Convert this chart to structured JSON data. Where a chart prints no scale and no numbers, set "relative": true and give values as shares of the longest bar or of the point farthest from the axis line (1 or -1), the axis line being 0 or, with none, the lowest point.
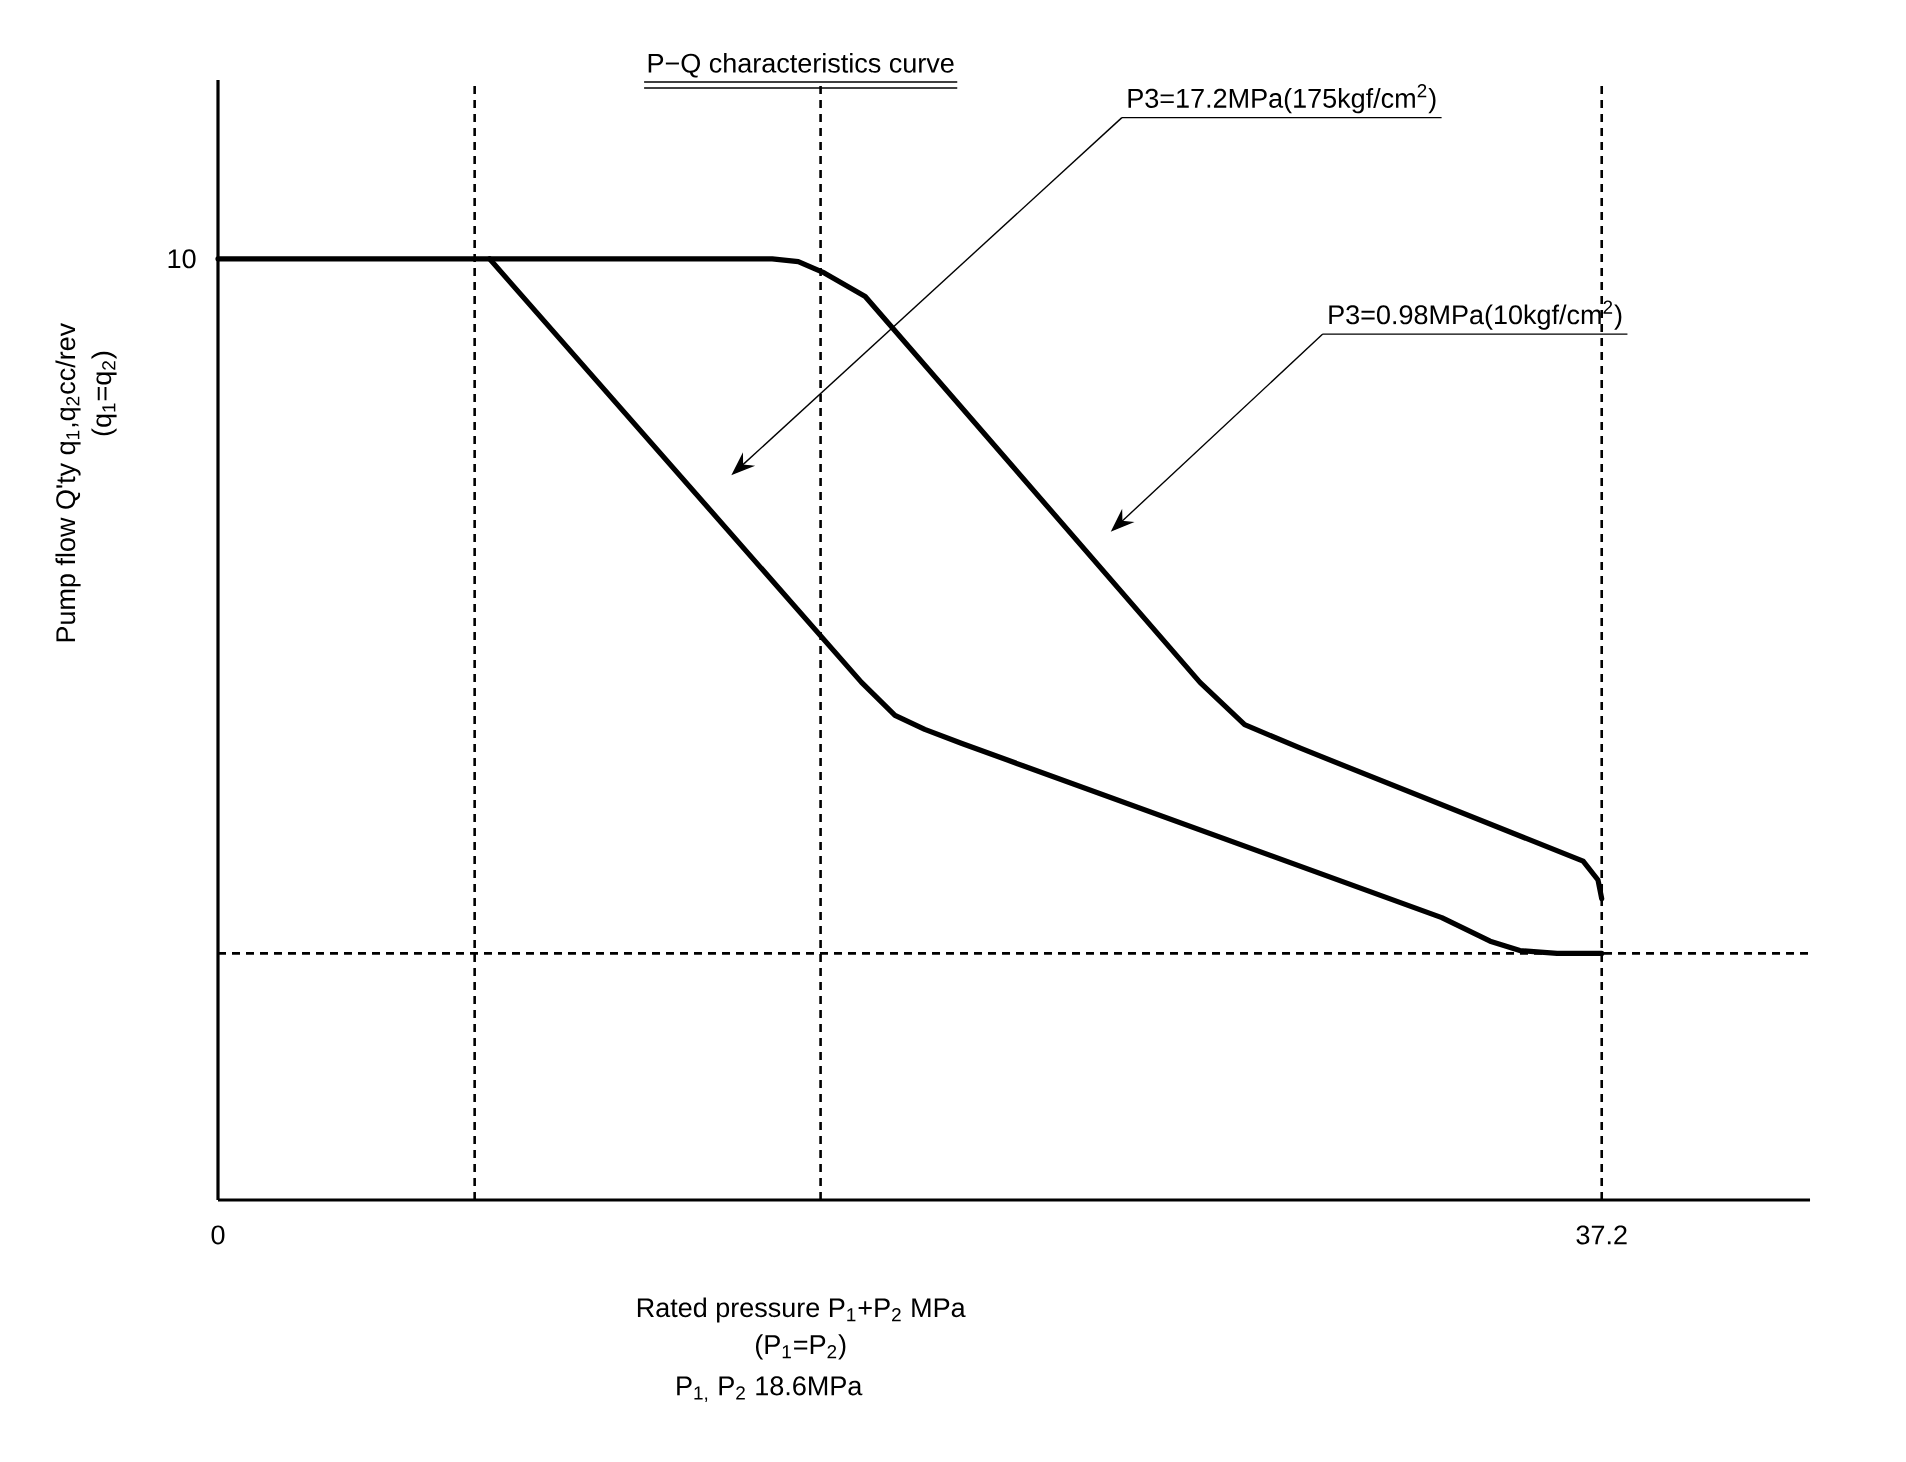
{
  "chart_data": {
    "type": "line",
    "title": "P−Q characteristics curve",
    "xlabel": "Rated pressure  P$_{1}$+P$_{2}$  MPa",
    "ylabel": "Pump flow Q'ty q$_{1}$,q$_{2}$cc/rev",
    "relative": true,
    "xlim": [
      0,
      42.8
    ],
    "xticks": [
      0,
      37.2
    ],
    "series": [
      {
        "color": "#000000",
        "x": [
          0,
          14.9,
          15.6,
          16.3,
          17.4,
          26.4,
          27.6,
          29.1,
          36.7,
          37.1,
          37.2
        ],
        "values": [
          1,
          1,
          0.997,
          0.985,
          0.96,
          0.55,
          0.505,
          0.48,
          0.36,
          0.34,
          0.32
        ]
      },
      {
        "color": "#000000",
        "x": [
          7.3,
          17.3,
          18.2,
          19.0,
          20.0,
          32.9,
          34.2,
          35.0,
          36.0,
          37.2
        ],
        "values": [
          1,
          0.55,
          0.515,
          0.5,
          0.485,
          0.3,
          0.275,
          0.265,
          0.262,
          0.262
        ]
      }
    ],
    "ref_lines": [
      {
        "axis": "x",
        "value": 6.9,
        "color": "#000000",
        "line_style": "dashed"
      },
      {
        "axis": "x",
        "value": 16.2,
        "color": "#000000",
        "line_style": "dashed"
      },
      {
        "axis": "x",
        "value": 37.2,
        "color": "#000000",
        "line_style": "dashed"
      },
      {
        "axis": "y",
        "value": 0.262,
        "color": "#000000",
        "line_style": "dashed"
      }
    ],
    "annotations": [
      "P3=17.2MPa(175kgf/cm$^{2}$)",
      "P3=0.98MPa(10kgf/cm$^{2}$)",
      "10",
      "(q$_{1}$=q$_{2}$)",
      "(P$_{1}$=P$_{2}$)",
      "P$_{1,}$ P$_{2}$  18.6MPa"
    ]
  }
}
